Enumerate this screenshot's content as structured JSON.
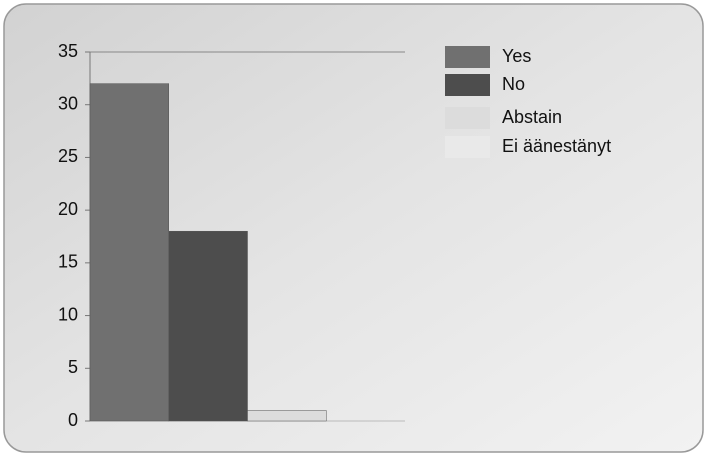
{
  "chart_data": {
    "type": "bar",
    "categories": [
      null
    ],
    "series": [
      {
        "name": "Yes",
        "color": "#707070",
        "values": [
          32
        ]
      },
      {
        "name": "No",
        "color": "#4d4d4d",
        "values": [
          18
        ]
      },
      {
        "name": "Abstain",
        "color": "#dcdcdc",
        "values": [
          1
        ]
      },
      {
        "name": "Ei äänestänyt",
        "color": "#e9e9e9",
        "values": [
          0
        ]
      }
    ],
    "ylim": [
      0,
      35
    ],
    "yticks": [
      0,
      5,
      10,
      15,
      20,
      25,
      30,
      35
    ],
    "grid": false,
    "legend": "right"
  }
}
